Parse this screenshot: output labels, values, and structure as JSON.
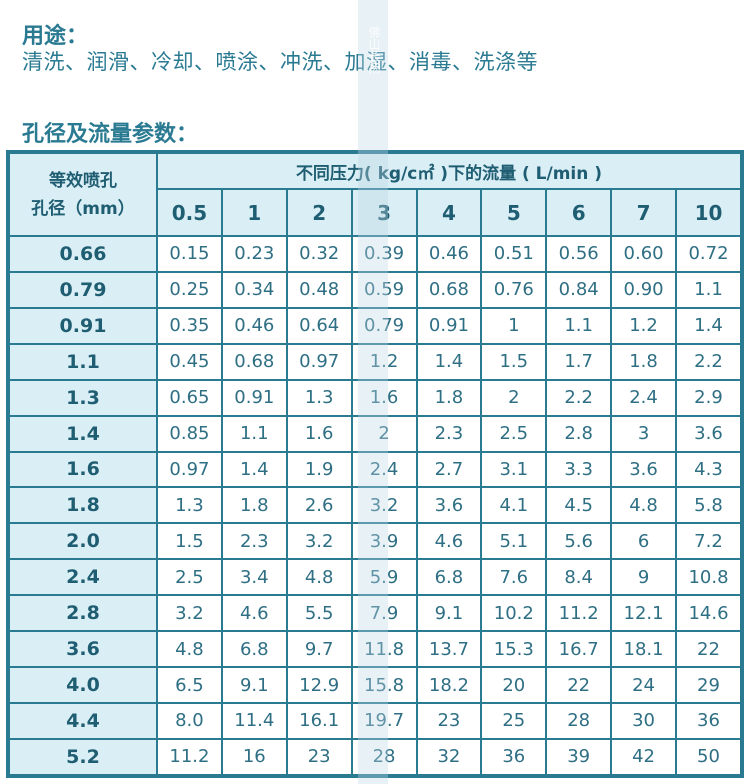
{
  "usage": {
    "title": "用途：",
    "text": "清洗、润滑、冷却、喷涂、冲洗、加湿、消毒、洗涤等"
  },
  "table_title": "孔径及流量参数：",
  "table": {
    "corner_label_line1": "等效喷孔",
    "corner_label_line2": "孔径（mm）",
    "top_header": "不同压力( kg/c㎡ )下的流量 ( L/min )",
    "pressures": [
      "0.5",
      "1",
      "2",
      "3",
      "4",
      "5",
      "6",
      "7",
      "10"
    ],
    "rows": [
      {
        "d": "0.66",
        "v": [
          "0.15",
          "0.23",
          "0.32",
          "0.39",
          "0.46",
          "0.51",
          "0.56",
          "0.60",
          "0.72"
        ]
      },
      {
        "d": "0.79",
        "v": [
          "0.25",
          "0.34",
          "0.48",
          "0.59",
          "0.68",
          "0.76",
          "0.84",
          "0.90",
          "1.1"
        ]
      },
      {
        "d": "0.91",
        "v": [
          "0.35",
          "0.46",
          "0.64",
          "0.79",
          "0.91",
          "1",
          "1.1",
          "1.2",
          "1.4"
        ]
      },
      {
        "d": "1.1",
        "v": [
          "0.45",
          "0.68",
          "0.97",
          "1.2",
          "1.4",
          "1.5",
          "1.7",
          "1.8",
          "2.2"
        ]
      },
      {
        "d": "1.3",
        "v": [
          "0.65",
          "0.91",
          "1.3",
          "1.6",
          "1.8",
          "2",
          "2.2",
          "2.4",
          "2.9"
        ]
      },
      {
        "d": "1.4",
        "v": [
          "0.85",
          "1.1",
          "1.6",
          "2",
          "2.3",
          "2.5",
          "2.8",
          "3",
          "3.6"
        ]
      },
      {
        "d": "1.6",
        "v": [
          "0.97",
          "1.4",
          "1.9",
          "2.4",
          "2.7",
          "3.1",
          "3.3",
          "3.6",
          "4.3"
        ]
      },
      {
        "d": "1.8",
        "v": [
          "1.3",
          "1.8",
          "2.6",
          "3.2",
          "3.6",
          "4.1",
          "4.5",
          "4.8",
          "5.8"
        ]
      },
      {
        "d": "2.0",
        "v": [
          "1.5",
          "2.3",
          "3.2",
          "3.9",
          "4.6",
          "5.1",
          "5.6",
          "6",
          "7.2"
        ]
      },
      {
        "d": "2.4",
        "v": [
          "2.5",
          "3.4",
          "4.8",
          "5.9",
          "6.8",
          "7.6",
          "8.4",
          "9",
          "10.8"
        ]
      },
      {
        "d": "2.8",
        "v": [
          "3.2",
          "4.6",
          "5.5",
          "7.9",
          "9.1",
          "10.2",
          "11.2",
          "12.1",
          "14.6"
        ]
      },
      {
        "d": "3.6",
        "v": [
          "4.8",
          "6.8",
          "9.7",
          "11.8",
          "13.7",
          "15.3",
          "16.7",
          "18.1",
          "22"
        ]
      },
      {
        "d": "4.0",
        "v": [
          "6.5",
          "9.1",
          "12.9",
          "15.8",
          "18.2",
          "20",
          "22",
          "24",
          "29"
        ]
      },
      {
        "d": "4.4",
        "v": [
          "8.0",
          "11.4",
          "16.1",
          "19.7",
          "23",
          "25",
          "28",
          "30",
          "36"
        ]
      },
      {
        "d": "5.2",
        "v": [
          "11.2",
          "16",
          "23",
          "28",
          "32",
          "36",
          "39",
          "42",
          "50"
        ]
      }
    ]
  },
  "watermark": "佛山长扬"
}
